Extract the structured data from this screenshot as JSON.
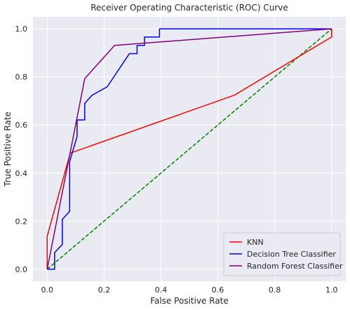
{
  "chart_data": {
    "type": "line",
    "title": "Receiver Operating Characteristic (ROC) Curve",
    "xlabel": "False Positive Rate",
    "ylabel": "True Positive Rate",
    "xlim": [
      -0.05,
      1.05
    ],
    "ylim": [
      -0.05,
      1.05
    ],
    "xticks": [
      "0.0",
      "0.2",
      "0.4",
      "0.6",
      "0.8",
      "1.0"
    ],
    "yticks": [
      "0.0",
      "0.2",
      "0.4",
      "0.6",
      "0.8",
      "1.0"
    ],
    "grid": true,
    "legend_position": "bottom-right",
    "series": [
      {
        "name": "KNN",
        "color": "#ff0000",
        "dash": "solid",
        "points": [
          [
            0.0,
            0.0
          ],
          [
            0.0,
            0.138
          ],
          [
            0.081,
            0.483
          ],
          [
            0.658,
            0.724
          ],
          [
            1.0,
            0.966
          ],
          [
            1.0,
            1.0
          ]
        ]
      },
      {
        "name": "Decision Tree Classifier",
        "color": "#0000ff",
        "dash": "solid",
        "points": [
          [
            0.0,
            0.0
          ],
          [
            0.026,
            0.0
          ],
          [
            0.026,
            0.069
          ],
          [
            0.053,
            0.103
          ],
          [
            0.053,
            0.207
          ],
          [
            0.079,
            0.241
          ],
          [
            0.079,
            0.448
          ],
          [
            0.105,
            0.552
          ],
          [
            0.105,
            0.621
          ],
          [
            0.132,
            0.621
          ],
          [
            0.132,
            0.69
          ],
          [
            0.158,
            0.724
          ],
          [
            0.211,
            0.759
          ],
          [
            0.289,
            0.897
          ],
          [
            0.316,
            0.897
          ],
          [
            0.316,
            0.931
          ],
          [
            0.342,
            0.931
          ],
          [
            0.342,
            0.966
          ],
          [
            0.395,
            0.966
          ],
          [
            0.395,
            1.0
          ],
          [
            1.0,
            1.0
          ]
        ]
      },
      {
        "name": "Random Forest Classifier",
        "color": "#800080",
        "dash": "solid",
        "points": [
          [
            0.0,
            0.0
          ],
          [
            0.132,
            0.793
          ],
          [
            0.237,
            0.931
          ],
          [
            1.0,
            1.0
          ]
        ]
      },
      {
        "color": "#008000",
        "dash": "dashed",
        "points": [
          [
            0.0,
            0.0
          ],
          [
            1.0,
            1.0
          ]
        ]
      }
    ]
  }
}
